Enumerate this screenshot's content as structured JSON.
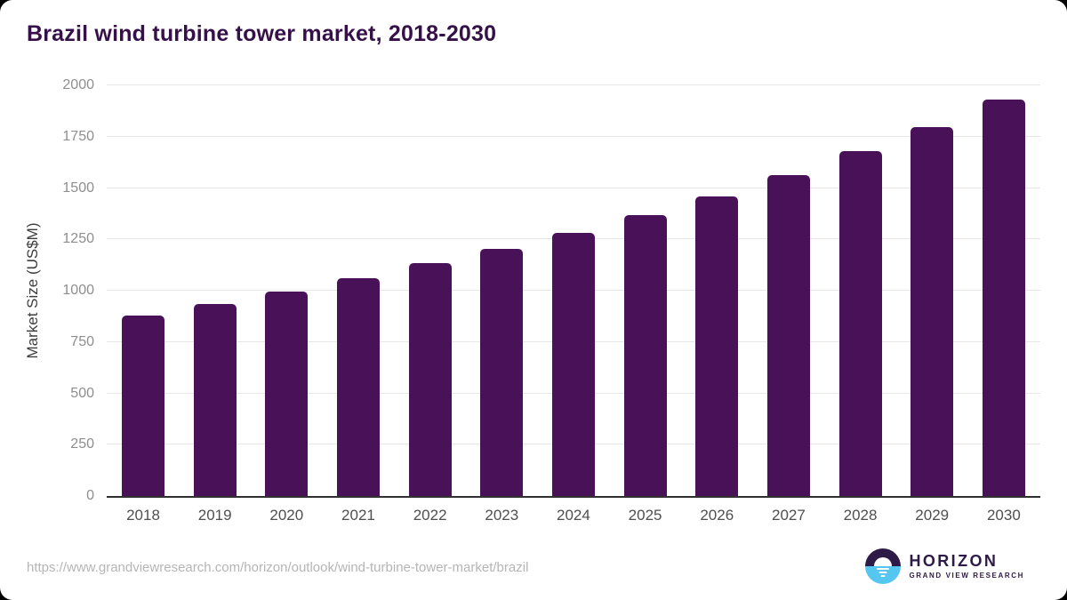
{
  "title": "Brazil wind turbine tower market, 2018-2030",
  "chart_data": {
    "type": "bar",
    "title": "Brazil wind turbine tower market, 2018-2030",
    "categories": [
      "2018",
      "2019",
      "2020",
      "2021",
      "2022",
      "2023",
      "2024",
      "2025",
      "2026",
      "2027",
      "2028",
      "2029",
      "2030"
    ],
    "values": [
      880,
      935,
      995,
      1060,
      1135,
      1205,
      1280,
      1370,
      1460,
      1565,
      1680,
      1795,
      1930
    ],
    "xlabel": "",
    "ylabel": "Market Size (US$M)",
    "ylim": [
      0,
      2000
    ],
    "yticks": [
      0,
      250,
      500,
      750,
      1000,
      1250,
      1500,
      1750,
      2000
    ],
    "grid": true,
    "legend": "none",
    "bar_color": "#481158"
  },
  "colors": {
    "title": "#351049",
    "bar": "#481158",
    "gridline": "#e7e7e7",
    "axis_line": "#303030",
    "y_tick_label": "#8e8e8e",
    "x_tick_label": "#4f4f4f",
    "source_text": "#b5b5b5",
    "logo_purple": "#2e1a47",
    "logo_blue": "#55c6ef"
  },
  "footer": {
    "source_url": "https://www.grandviewresearch.com/horizon/outlook/wind-turbine-tower-market/brazil",
    "logo": {
      "name": "HORIZON",
      "subtitle": "GRAND VIEW RESEARCH"
    }
  }
}
